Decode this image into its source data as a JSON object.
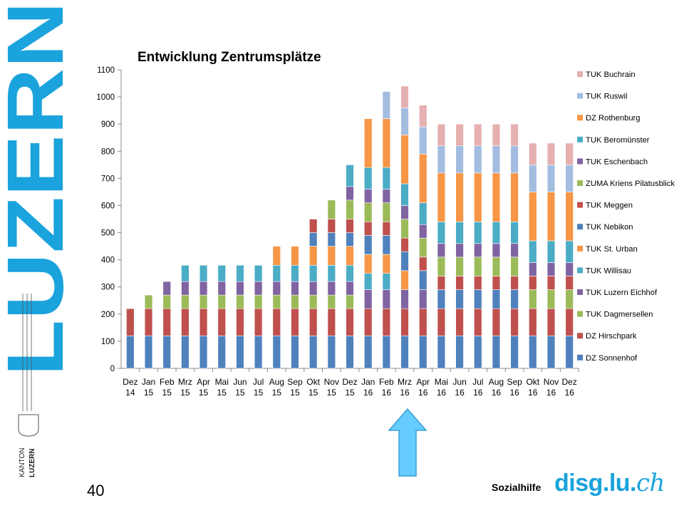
{
  "brand": {
    "city": "LUZERN",
    "kanton_top": "KANTON",
    "kanton_bottom": "LUZERN",
    "color": "#1aa3dc"
  },
  "page_number": "40",
  "footer": {
    "sozialhilfe": "Sozialhilfe",
    "site_main": "disg.lu.",
    "site_tld": "ch"
  },
  "annotation": {
    "arrow_icon": "up-arrow-icon",
    "arrow_color": "#66ccff"
  },
  "chart_data": {
    "type": "bar",
    "stacked": true,
    "title": "Entwicklung Zentrumsplätze",
    "xlabel": "",
    "ylabel": "",
    "ylim": [
      0,
      1100
    ],
    "yticks": [
      0,
      100,
      200,
      300,
      400,
      500,
      600,
      700,
      800,
      900,
      1000,
      1100
    ],
    "grid": false,
    "legend_position": "right",
    "categories": [
      [
        "Dez",
        "14"
      ],
      [
        "Jan",
        "15"
      ],
      [
        "Feb",
        "15"
      ],
      [
        "Mrz",
        "15"
      ],
      [
        "Apr",
        "15"
      ],
      [
        "Mai",
        "15"
      ],
      [
        "Jun",
        "15"
      ],
      [
        "Jul",
        "15"
      ],
      [
        "Aug",
        "15"
      ],
      [
        "Sep",
        "15"
      ],
      [
        "Okt",
        "15"
      ],
      [
        "Nov",
        "15"
      ],
      [
        "Dez",
        "15"
      ],
      [
        "Jan",
        "16"
      ],
      [
        "Feb",
        "16"
      ],
      [
        "Mrz",
        "16"
      ],
      [
        "Apr",
        "16"
      ],
      [
        "Mai",
        "16"
      ],
      [
        "Jun",
        "16"
      ],
      [
        "Jul",
        "16"
      ],
      [
        "Aug",
        "16"
      ],
      [
        "Sep",
        "16"
      ],
      [
        "Okt",
        "16"
      ],
      [
        "Nov",
        "16"
      ],
      [
        "Dez",
        "16"
      ]
    ],
    "series": [
      {
        "name": "DZ Sonnenhof",
        "color": "#4f81bd",
        "values": [
          120,
          120,
          120,
          120,
          120,
          120,
          120,
          120,
          120,
          120,
          120,
          120,
          120,
          120,
          120,
          120,
          120,
          120,
          120,
          120,
          120,
          120,
          120,
          120,
          120
        ]
      },
      {
        "name": "DZ Hirschpark",
        "color": "#c0504d",
        "values": [
          100,
          100,
          100,
          100,
          100,
          100,
          100,
          100,
          100,
          100,
          100,
          100,
          100,
          100,
          100,
          100,
          100,
          100,
          100,
          100,
          100,
          100,
          100,
          100,
          100
        ]
      },
      {
        "name": "TUK Dagmersellen",
        "color": "#9bbb59",
        "values": [
          0,
          50,
          50,
          50,
          50,
          50,
          50,
          50,
          50,
          50,
          50,
          50,
          50,
          0,
          0,
          0,
          0,
          0,
          0,
          0,
          0,
          0,
          70,
          70,
          70
        ]
      },
      {
        "name": "TUK Luzern Eichhof",
        "color": "#8064a2",
        "values": [
          0,
          0,
          50,
          50,
          50,
          50,
          50,
          50,
          50,
          50,
          50,
          50,
          50,
          70,
          70,
          70,
          70,
          0,
          0,
          0,
          0,
          0,
          0,
          0,
          0
        ]
      },
      {
        "name": "TUK Willisau",
        "color": "#4bacc6",
        "values": [
          0,
          0,
          0,
          60,
          60,
          60,
          60,
          60,
          60,
          60,
          60,
          60,
          60,
          60,
          60,
          0,
          0,
          0,
          0,
          0,
          0,
          0,
          0,
          0,
          0
        ]
      },
      {
        "name": "TUK St. Urban",
        "color": "#f79646",
        "values": [
          0,
          0,
          0,
          0,
          0,
          0,
          0,
          0,
          70,
          70,
          70,
          70,
          70,
          70,
          70,
          70,
          0,
          0,
          0,
          0,
          0,
          0,
          0,
          0,
          0
        ]
      },
      {
        "name": "TUK Nebikon",
        "color": "#4f81bd",
        "values": [
          0,
          0,
          0,
          0,
          0,
          0,
          0,
          0,
          0,
          0,
          50,
          50,
          50,
          70,
          70,
          70,
          70,
          70,
          70,
          70,
          70,
          70,
          0,
          0,
          0
        ]
      },
      {
        "name": "TUK Meggen",
        "color": "#c0504d",
        "values": [
          0,
          0,
          0,
          0,
          0,
          0,
          0,
          0,
          0,
          0,
          50,
          50,
          50,
          50,
          50,
          50,
          50,
          50,
          50,
          50,
          50,
          50,
          50,
          50,
          50
        ]
      },
      {
        "name": "ZUMA Kriens Pilatusblick",
        "color": "#9bbb59",
        "values": [
          0,
          0,
          0,
          0,
          0,
          0,
          0,
          0,
          0,
          0,
          0,
          70,
          70,
          70,
          70,
          70,
          70,
          70,
          70,
          70,
          70,
          70,
          0,
          0,
          0
        ]
      },
      {
        "name": "TUK Eschenbach",
        "color": "#8064a2",
        "values": [
          0,
          0,
          0,
          0,
          0,
          0,
          0,
          0,
          0,
          0,
          0,
          0,
          50,
          50,
          50,
          50,
          50,
          50,
          50,
          50,
          50,
          50,
          50,
          50,
          50
        ]
      },
      {
        "name": "TUK Beromünster",
        "color": "#4bacc6",
        "values": [
          0,
          0,
          0,
          0,
          0,
          0,
          0,
          0,
          0,
          0,
          0,
          0,
          80,
          80,
          80,
          80,
          80,
          80,
          80,
          80,
          80,
          80,
          80,
          80,
          80
        ]
      },
      {
        "name": "DZ Rothenburg",
        "color": "#f79646",
        "values": [
          0,
          0,
          0,
          0,
          0,
          0,
          0,
          0,
          0,
          0,
          0,
          0,
          0,
          180,
          180,
          180,
          180,
          180,
          180,
          180,
          180,
          180,
          180,
          180,
          180
        ]
      },
      {
        "name": "TUK Ruswil",
        "color": "#a3bde0",
        "values": [
          0,
          0,
          0,
          0,
          0,
          0,
          0,
          0,
          0,
          0,
          0,
          0,
          0,
          0,
          100,
          100,
          100,
          100,
          100,
          100,
          100,
          100,
          100,
          100,
          100
        ]
      },
      {
        "name": "TUK Buchrain",
        "color": "#e6b0b0",
        "values": [
          0,
          0,
          0,
          0,
          0,
          0,
          0,
          0,
          0,
          0,
          0,
          0,
          0,
          0,
          0,
          80,
          80,
          80,
          80,
          80,
          80,
          80,
          80,
          80,
          80
        ]
      }
    ]
  }
}
